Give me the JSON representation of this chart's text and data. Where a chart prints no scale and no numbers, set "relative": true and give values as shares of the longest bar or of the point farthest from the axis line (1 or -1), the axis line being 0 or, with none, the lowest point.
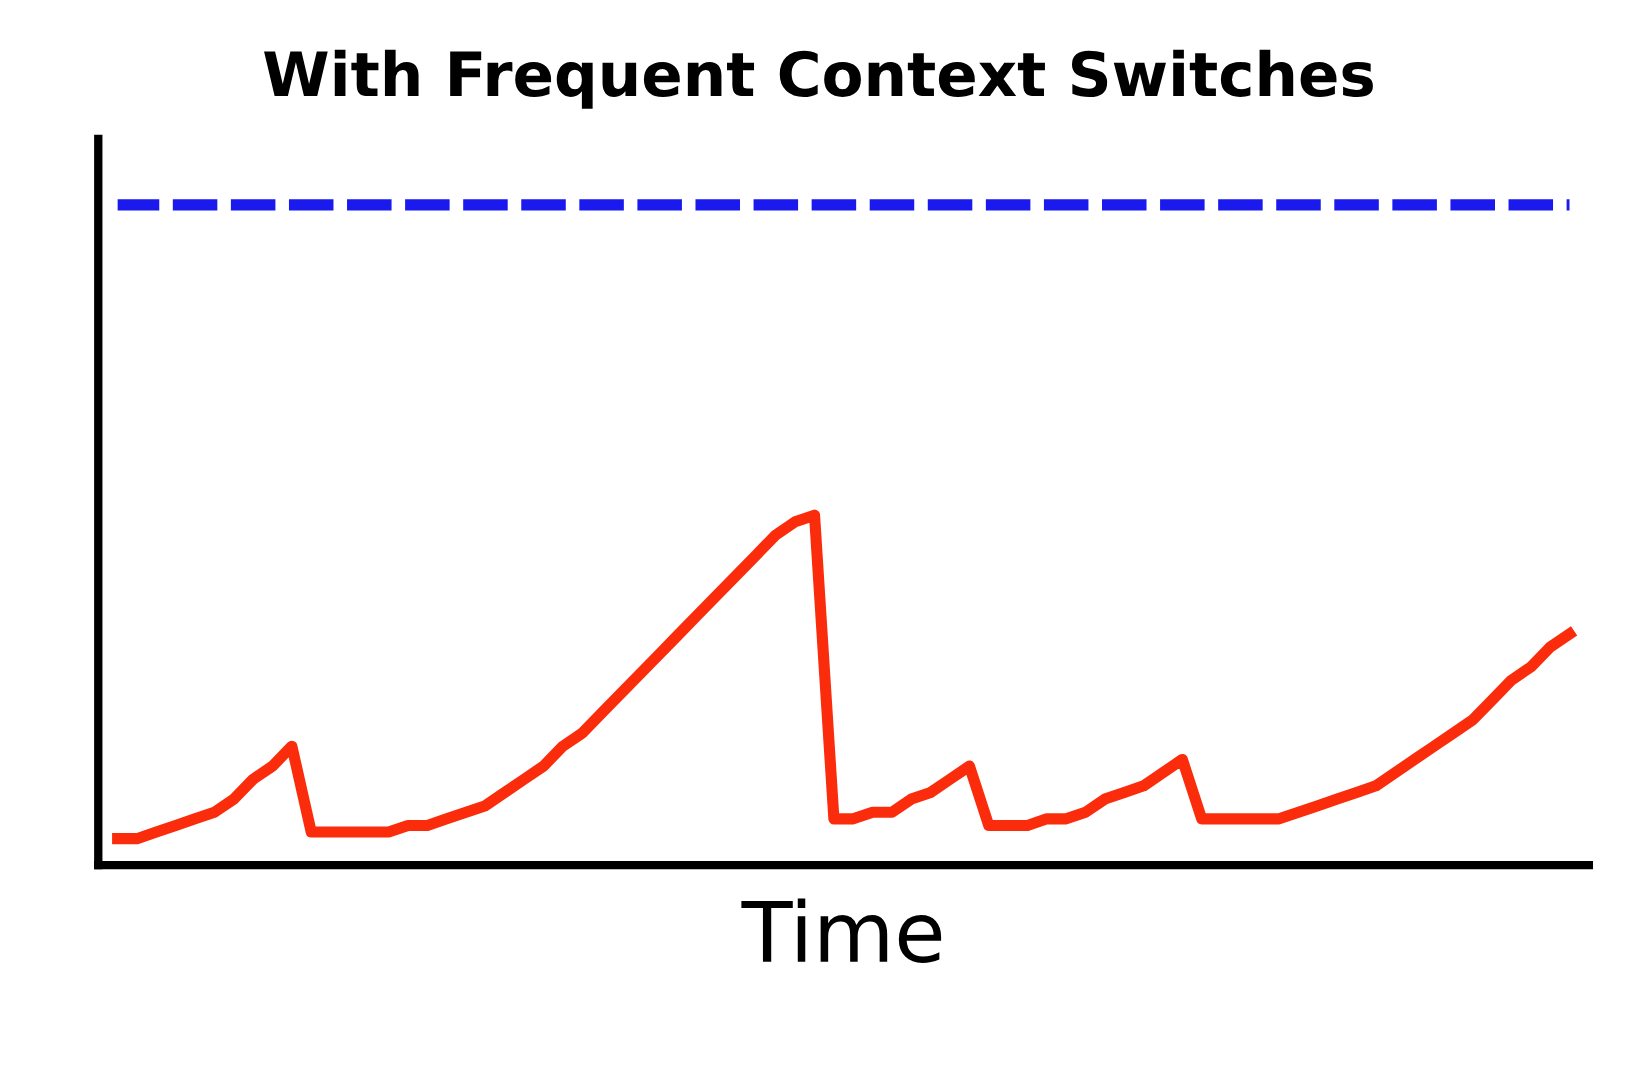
{
  "chart_data": {
    "type": "line",
    "title": "With Frequent Context Switches",
    "xlabel": "Time",
    "relative": true,
    "tick_labels": false,
    "grid": false,
    "legend": false,
    "categories": [
      null,
      null,
      null,
      null,
      null,
      null,
      null,
      null,
      null,
      null,
      null,
      null,
      null,
      null,
      null,
      null,
      null,
      null,
      null,
      null,
      null,
      null,
      null,
      null,
      null,
      null,
      null,
      null,
      null,
      null,
      null,
      null,
      null,
      null,
      null,
      null,
      null,
      null,
      null,
      null,
      null,
      null,
      null,
      null,
      null,
      null,
      null,
      null,
      null,
      null,
      null,
      null,
      null,
      null,
      null,
      null,
      null,
      null,
      null,
      null,
      null,
      null,
      null,
      null,
      null,
      null,
      null,
      null,
      null,
      null,
      null,
      null,
      null,
      null,
      null,
      null
    ],
    "series": [
      {
        "color": "#1a1aee",
        "line_style": "dashed",
        "values": [
          1,
          1,
          1,
          1,
          1,
          1,
          1,
          1,
          1,
          1,
          1,
          1,
          1,
          1,
          1,
          1,
          1,
          1,
          1,
          1,
          1,
          1,
          1,
          1,
          1,
          1,
          1,
          1,
          1,
          1,
          1,
          1,
          1,
          1,
          1,
          1,
          1,
          1,
          1,
          1,
          1,
          1,
          1,
          1,
          1,
          1,
          1,
          1,
          1,
          1,
          1,
          1,
          1,
          1,
          1,
          1,
          1,
          1,
          1,
          1,
          1,
          1,
          1,
          1,
          1,
          1,
          1,
          1,
          1,
          1,
          1,
          1,
          1,
          1,
          1,
          1
        ]
      },
      {
        "color": "#fb2c0c",
        "line_style": "solid",
        "values": [
          0.04,
          0.04,
          0.05,
          0.06,
          0.07,
          0.08,
          0.1,
          0.13,
          0.15,
          0.18,
          0.05,
          0.05,
          0.05,
          0.05,
          0.05,
          0.06,
          0.06,
          0.07,
          0.08,
          0.09,
          0.11,
          0.13,
          0.15,
          0.18,
          0.2,
          0.23,
          0.26,
          0.29,
          0.32,
          0.35,
          0.38,
          0.41,
          0.44,
          0.47,
          0.5,
          0.52,
          0.53,
          0.07,
          0.07,
          0.08,
          0.08,
          0.1,
          0.11,
          0.13,
          0.15,
          0.06,
          0.06,
          0.06,
          0.07,
          0.07,
          0.08,
          0.1,
          0.11,
          0.12,
          0.14,
          0.16,
          0.07,
          0.07,
          0.07,
          0.07,
          0.07,
          0.08,
          0.09,
          0.1,
          0.11,
          0.12,
          0.14,
          0.16,
          0.18,
          0.2,
          0.22,
          0.25,
          0.28,
          0.3,
          0.33,
          0.35
        ]
      }
    ]
  }
}
